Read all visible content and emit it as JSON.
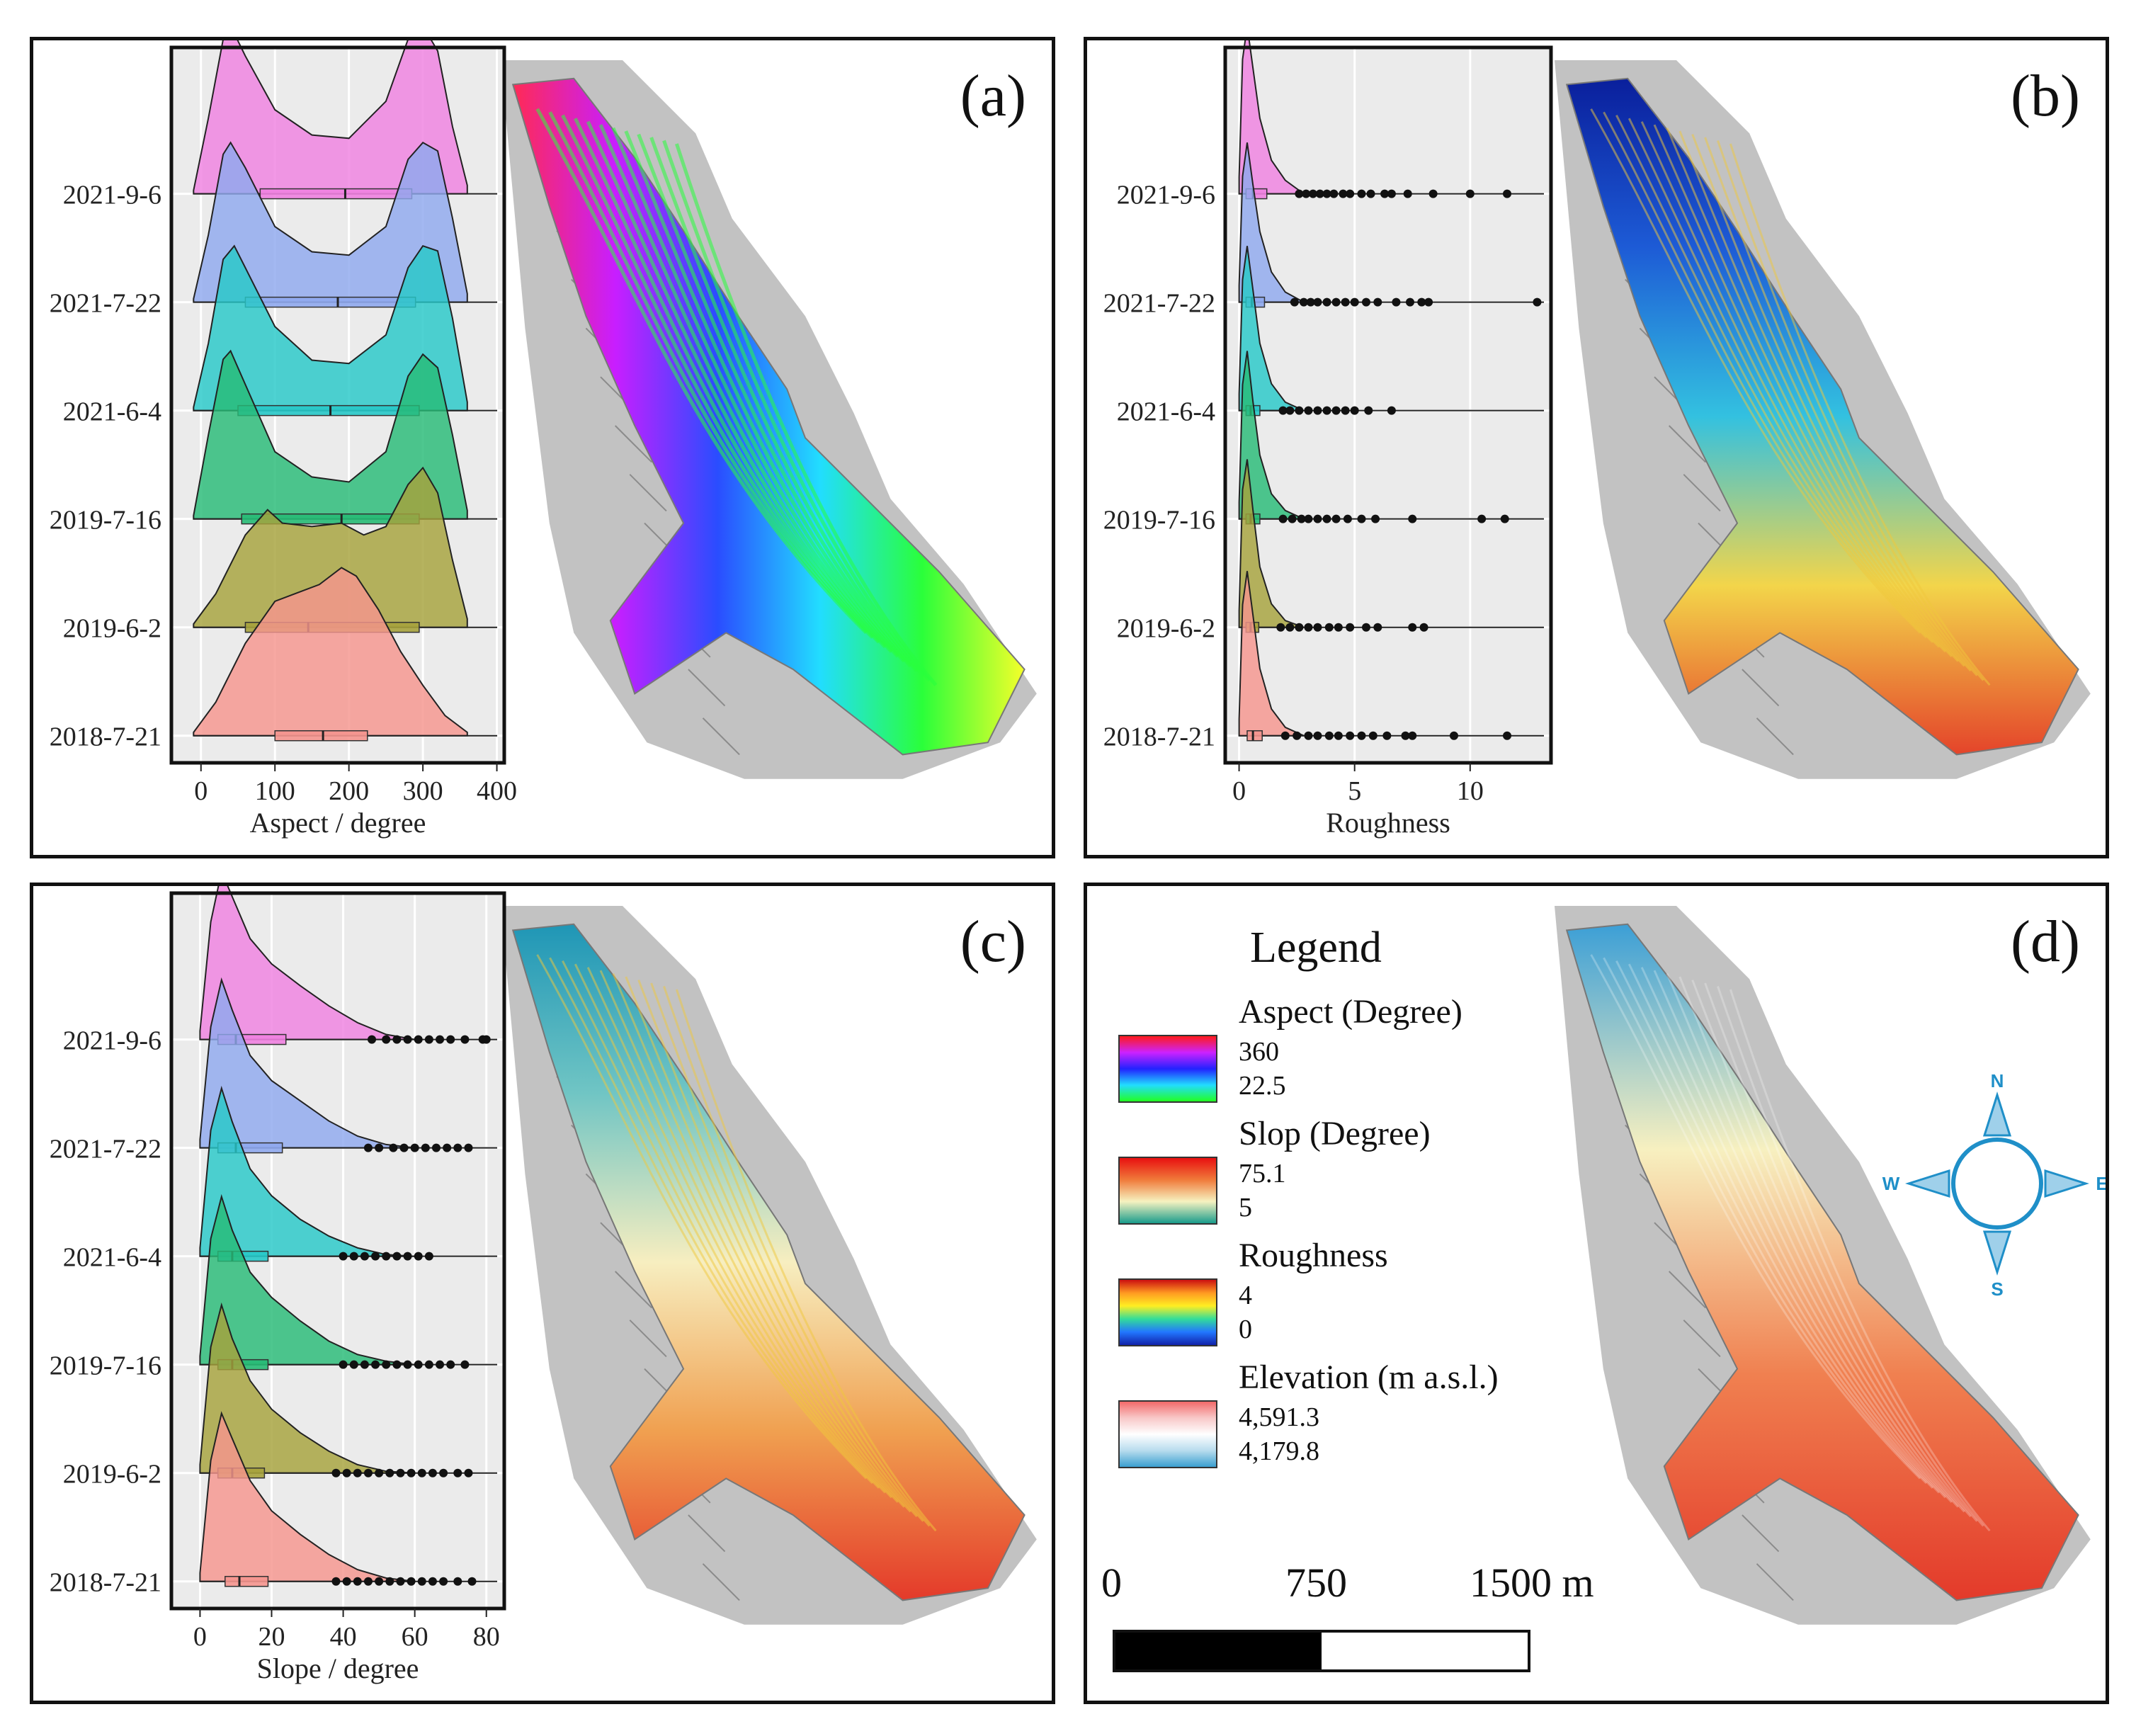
{
  "figure": {
    "panels": [
      {
        "letter": "(a)"
      },
      {
        "letter": "(b)"
      },
      {
        "letter": "(c)"
      },
      {
        "letter": "(d)"
      }
    ]
  },
  "chart_data": [
    {
      "type": "area",
      "panel": "(a)",
      "xlabel": "Aspect / degree",
      "xlim": [
        -40,
        410
      ],
      "xticks": [
        0,
        100,
        200,
        300,
        400
      ],
      "categories": [
        "2021-9-6",
        "2021-7-22",
        "2021-6-4",
        "2019-7-16",
        "2019-6-2",
        "2018-7-21"
      ],
      "colors": [
        "#ef81e0",
        "#8fa8ee",
        "#27c8c8",
        "#27bb76",
        "#a6a23c",
        "#f5958e"
      ],
      "grid": true,
      "series": [
        {
          "x": [
            -10,
            10,
            30,
            40,
            60,
            100,
            150,
            200,
            250,
            280,
            300,
            320,
            340,
            360
          ],
          "density": [
            0.02,
            0.45,
            0.92,
            1.0,
            0.82,
            0.5,
            0.35,
            0.33,
            0.55,
            0.92,
            1.0,
            0.85,
            0.4,
            0.05
          ],
          "box": [
            80,
            195,
            285
          ],
          "outliers": []
        },
        {
          "x": [
            -10,
            10,
            30,
            40,
            60,
            100,
            150,
            200,
            250,
            280,
            300,
            320,
            340,
            360
          ],
          "density": [
            0.02,
            0.4,
            0.88,
            0.95,
            0.8,
            0.45,
            0.3,
            0.28,
            0.45,
            0.85,
            0.95,
            0.9,
            0.5,
            0.05
          ],
          "box": [
            60,
            185,
            290
          ],
          "outliers": []
        },
        {
          "x": [
            -10,
            10,
            30,
            45,
            60,
            100,
            150,
            200,
            250,
            280,
            300,
            320,
            340,
            360
          ],
          "density": [
            0.02,
            0.4,
            0.9,
            0.98,
            0.85,
            0.5,
            0.3,
            0.28,
            0.45,
            0.85,
            0.98,
            0.95,
            0.55,
            0.05
          ],
          "box": [
            50,
            175,
            295
          ],
          "outliers": []
        },
        {
          "x": [
            -10,
            10,
            30,
            40,
            60,
            100,
            150,
            200,
            250,
            280,
            300,
            320,
            340,
            360
          ],
          "density": [
            0.02,
            0.5,
            0.95,
            1.0,
            0.8,
            0.4,
            0.25,
            0.22,
            0.4,
            0.85,
            0.98,
            0.9,
            0.5,
            0.05
          ],
          "box": [
            55,
            190,
            295
          ],
          "outliers": []
        },
        {
          "x": [
            -10,
            20,
            60,
            90,
            110,
            150,
            190,
            220,
            250,
            280,
            300,
            320,
            340,
            360
          ],
          "density": [
            0.02,
            0.2,
            0.55,
            0.7,
            0.62,
            0.6,
            0.62,
            0.55,
            0.6,
            0.85,
            0.95,
            0.8,
            0.4,
            0.05
          ],
          "box": [
            60,
            145,
            295
          ],
          "outliers": []
        },
        {
          "x": [
            -10,
            20,
            60,
            100,
            130,
            160,
            190,
            210,
            240,
            270,
            300,
            330,
            360
          ],
          "density": [
            0.02,
            0.2,
            0.55,
            0.8,
            0.85,
            0.9,
            1.0,
            0.95,
            0.75,
            0.5,
            0.3,
            0.12,
            0.02
          ],
          "box": [
            100,
            165,
            225
          ],
          "outliers": []
        }
      ]
    },
    {
      "type": "area",
      "panel": "(b)",
      "xlabel": "Roughness",
      "xlim": [
        -0.6,
        13.5
      ],
      "xticks": [
        0,
        5,
        10
      ],
      "categories": [
        "2021-9-6",
        "2021-7-22",
        "2021-6-4",
        "2019-7-16",
        "2019-6-2",
        "2018-7-21"
      ],
      "colors": [
        "#ef81e0",
        "#8fa8ee",
        "#27c8c8",
        "#27bb76",
        "#a6a23c",
        "#f5958e"
      ],
      "grid": true,
      "series": [
        {
          "x": [
            0,
            0.15,
            0.35,
            0.6,
            0.9,
            1.4,
            2.0,
            2.8
          ],
          "density": [
            0.1,
            0.8,
            1.0,
            0.75,
            0.45,
            0.2,
            0.08,
            0.0
          ],
          "box": [
            0.3,
            0.6,
            1.2
          ],
          "outliers": [
            2.6,
            2.9,
            3.2,
            3.5,
            3.8,
            4.1,
            4.5,
            4.8,
            5.3,
            5.7,
            6.3,
            6.6,
            7.3,
            8.4,
            10.0,
            11.6
          ]
        },
        {
          "x": [
            0,
            0.15,
            0.35,
            0.6,
            0.9,
            1.4,
            2.0,
            2.8
          ],
          "density": [
            0.1,
            0.75,
            0.95,
            0.7,
            0.42,
            0.18,
            0.06,
            0.0
          ],
          "box": [
            0.3,
            0.55,
            1.1
          ],
          "outliers": [
            2.4,
            2.8,
            3.1,
            3.4,
            3.8,
            4.2,
            4.6,
            5.0,
            5.5,
            6.0,
            6.8,
            7.4,
            7.9,
            8.2,
            12.9
          ]
        },
        {
          "x": [
            0,
            0.15,
            0.35,
            0.6,
            0.9,
            1.4,
            2.0,
            2.8
          ],
          "density": [
            0.1,
            0.78,
            0.98,
            0.72,
            0.4,
            0.16,
            0.05,
            0.0
          ],
          "box": [
            0.3,
            0.5,
            0.9
          ],
          "outliers": [
            1.9,
            2.2,
            2.6,
            3.0,
            3.4,
            3.8,
            4.2,
            4.6,
            5.0,
            5.6,
            6.6
          ]
        },
        {
          "x": [
            0,
            0.15,
            0.35,
            0.6,
            0.9,
            1.4,
            2.0,
            2.8
          ],
          "density": [
            0.1,
            0.8,
            1.0,
            0.7,
            0.38,
            0.15,
            0.05,
            0.0
          ],
          "box": [
            0.3,
            0.5,
            0.9
          ],
          "outliers": [
            1.9,
            2.3,
            2.7,
            3.0,
            3.4,
            3.8,
            4.2,
            4.7,
            5.3,
            5.9,
            7.5,
            10.5,
            11.5
          ]
        },
        {
          "x": [
            0,
            0.15,
            0.35,
            0.6,
            0.9,
            1.4,
            2.0,
            2.8
          ],
          "density": [
            0.1,
            0.82,
            1.0,
            0.7,
            0.36,
            0.14,
            0.04,
            0.0
          ],
          "box": [
            0.3,
            0.5,
            0.85
          ],
          "outliers": [
            1.8,
            2.2,
            2.6,
            3.0,
            3.4,
            3.9,
            4.3,
            4.8,
            5.5,
            6.0,
            7.5,
            8.0
          ]
        },
        {
          "x": [
            0,
            0.15,
            0.35,
            0.6,
            0.9,
            1.4,
            2.0,
            2.8
          ],
          "density": [
            0.1,
            0.78,
            0.98,
            0.72,
            0.4,
            0.16,
            0.05,
            0.0
          ],
          "box": [
            0.35,
            0.6,
            1.0
          ],
          "outliers": [
            2.0,
            2.5,
            3.0,
            3.4,
            3.9,
            4.3,
            4.8,
            5.3,
            5.8,
            6.4,
            7.2,
            7.5,
            9.3,
            11.6
          ]
        }
      ]
    },
    {
      "type": "area",
      "panel": "(c)",
      "xlabel": "Slope / degree",
      "xlim": [
        -8,
        85
      ],
      "xticks": [
        0,
        20,
        40,
        60,
        80
      ],
      "categories": [
        "2021-9-6",
        "2021-7-22",
        "2021-6-4",
        "2019-7-16",
        "2019-6-2",
        "2018-7-21"
      ],
      "colors": [
        "#ef81e0",
        "#8fa8ee",
        "#27c8c8",
        "#27bb76",
        "#a6a23c",
        "#f5958e"
      ],
      "grid": true,
      "series": [
        {
          "x": [
            0,
            3,
            6,
            9,
            14,
            20,
            28,
            36,
            44,
            52,
            60
          ],
          "density": [
            0.05,
            0.7,
            1.0,
            0.85,
            0.6,
            0.45,
            0.32,
            0.2,
            0.1,
            0.03,
            0.0
          ],
          "box": [
            5,
            10,
            24
          ],
          "outliers": [
            48,
            52,
            55,
            58,
            61,
            64,
            67,
            70,
            74,
            79,
            80
          ]
        },
        {
          "x": [
            0,
            3,
            6,
            9,
            14,
            20,
            28,
            36,
            44,
            52,
            60
          ],
          "density": [
            0.05,
            0.72,
            1.0,
            0.82,
            0.55,
            0.4,
            0.28,
            0.16,
            0.07,
            0.02,
            0.0
          ],
          "box": [
            5,
            10,
            23
          ],
          "outliers": [
            47,
            50,
            54,
            57,
            60,
            63,
            66,
            69,
            72,
            75
          ]
        },
        {
          "x": [
            0,
            3,
            6,
            9,
            14,
            20,
            28,
            36,
            44,
            52,
            60
          ],
          "density": [
            0.05,
            0.75,
            1.0,
            0.8,
            0.52,
            0.36,
            0.22,
            0.12,
            0.05,
            0.01,
            0.0
          ],
          "box": [
            5,
            9,
            19
          ],
          "outliers": [
            40,
            43,
            46,
            49,
            52,
            55,
            58,
            61,
            64
          ]
        },
        {
          "x": [
            0,
            3,
            6,
            9,
            14,
            20,
            28,
            36,
            44,
            52,
            60
          ],
          "density": [
            0.05,
            0.75,
            1.0,
            0.8,
            0.55,
            0.4,
            0.26,
            0.14,
            0.06,
            0.02,
            0.0
          ],
          "box": [
            5,
            9,
            19
          ],
          "outliers": [
            40,
            43,
            46,
            49,
            52,
            55,
            58,
            61,
            64,
            67,
            70,
            74
          ]
        },
        {
          "x": [
            0,
            3,
            6,
            9,
            14,
            20,
            28,
            36,
            44,
            52,
            60
          ],
          "density": [
            0.05,
            0.75,
            1.0,
            0.8,
            0.55,
            0.38,
            0.24,
            0.13,
            0.05,
            0.01,
            0.0
          ],
          "box": [
            5,
            9,
            18
          ],
          "outliers": [
            38,
            41,
            44,
            47,
            50,
            53,
            56,
            59,
            62,
            65,
            68,
            72,
            75
          ]
        },
        {
          "x": [
            0,
            3,
            6,
            9,
            14,
            20,
            28,
            36,
            44,
            52,
            60
          ],
          "density": [
            0.05,
            0.72,
            1.0,
            0.85,
            0.6,
            0.42,
            0.28,
            0.16,
            0.07,
            0.02,
            0.0
          ],
          "box": [
            7,
            11,
            19
          ],
          "outliers": [
            38,
            41,
            44,
            47,
            50,
            53,
            56,
            59,
            62,
            65,
            68,
            72,
            76
          ]
        }
      ]
    }
  ],
  "legend": {
    "title": "Legend",
    "aspect": {
      "label": "Aspect (Degree)",
      "max": "360",
      "min": "22.5",
      "colors": [
        "#ff1a1a",
        "#cc22ff",
        "#2222ff",
        "#22ddff",
        "#22ff22"
      ]
    },
    "slope": {
      "label": "Slop (Degree)",
      "max": "75.1",
      "min": "5",
      "colors": [
        "#e81010",
        "#f07a3a",
        "#f6f2c0",
        "#1a9c8c"
      ]
    },
    "roughness": {
      "label": "Roughness",
      "max": "4",
      "min": "0",
      "colors": [
        "#cc1010",
        "#ff9922",
        "#ffee22",
        "#33dd99",
        "#2277ff",
        "#1122aa"
      ]
    },
    "elevation": {
      "label": "Elevation (m a.s.l.)",
      "max": "4,591.3",
      "min": "4,179.8",
      "colors": [
        "#f36a6a",
        "#f8c8c8",
        "#ffffff",
        "#b8dcee",
        "#3b9fd0"
      ]
    }
  },
  "scale": {
    "zero": "0",
    "mid": "750",
    "end": "1500 m"
  },
  "compass": {
    "n": "N",
    "s": "S",
    "e": "E",
    "w": "W",
    "color": "#1f8fc8"
  },
  "maps": {
    "hillshade": "#9a9a9a",
    "elevation": [
      "#3c9fd6",
      "#f7f0c0",
      "#f08050",
      "#e33a2a"
    ],
    "roughness": [
      "#0a1f9c",
      "#1d5bd6",
      "#33c1e0",
      "#f3d54a",
      "#e4442a"
    ],
    "slope": [
      "#1f96b6",
      "#70c5c4",
      "#f7eec0",
      "#f0a050",
      "#e43a2a"
    ],
    "aspect": [
      "#ff2a55",
      "#c81eff",
      "#2a4dff",
      "#22ddff",
      "#2aff3a",
      "#f5ff2a"
    ]
  }
}
